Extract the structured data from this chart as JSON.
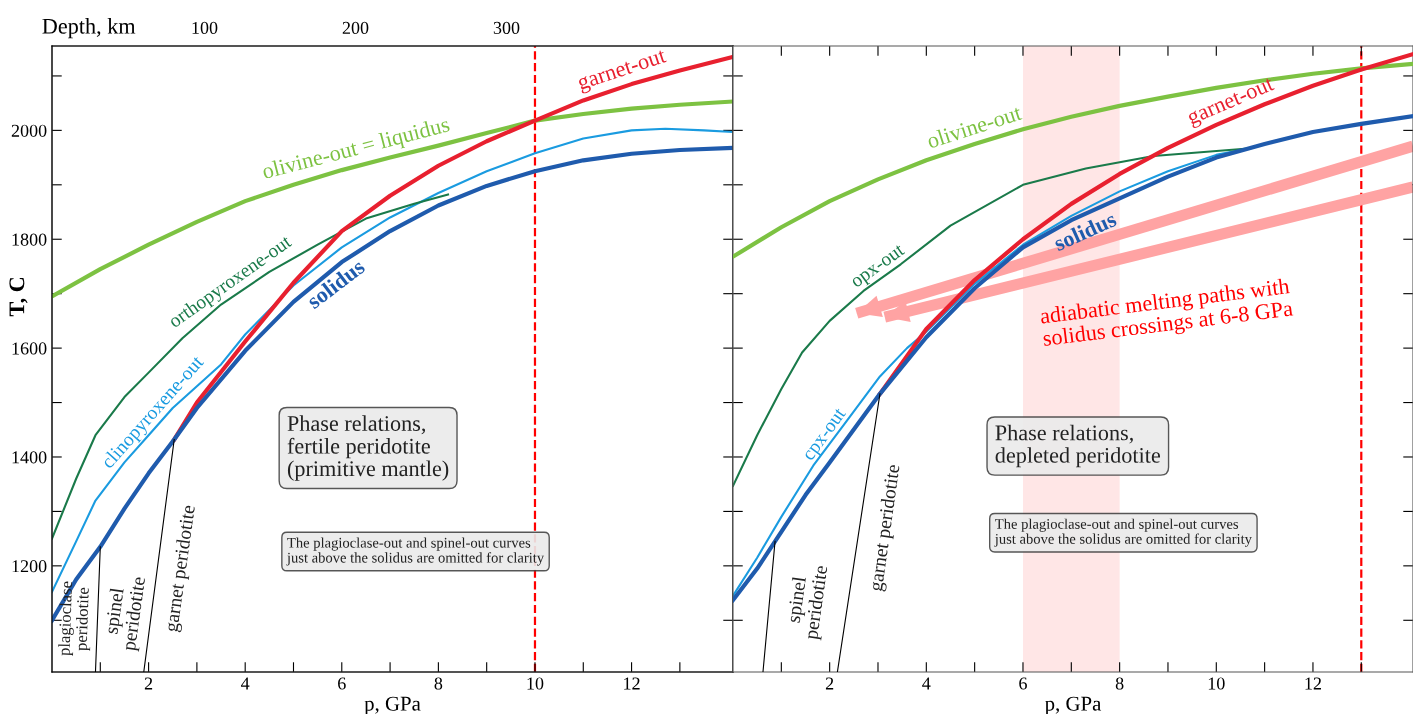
{
  "chart_data": [
    {
      "type": "line",
      "xlabel": "p, GPa",
      "ylabel": "T, C",
      "x2label": "Depth, km",
      "xlim": [
        0,
        14.1
      ],
      "ylim": [
        1005,
        2155
      ],
      "x2lim": [
        -1,
        450
      ],
      "xticks": [
        {
          "value": 1,
          "label": null
        },
        2,
        {
          "value": 3,
          "label": null
        },
        4,
        {
          "value": 5,
          "label": null
        },
        6,
        {
          "value": 7,
          "label": null
        },
        8,
        {
          "value": 9,
          "label": null
        },
        10,
        {
          "value": 11,
          "label": null
        },
        12,
        {
          "value": 13,
          "label": null
        }
      ],
      "yticks": [
        {
          "value": 1100,
          "label": null
        },
        1200,
        {
          "value": 1300,
          "label": null
        },
        1400,
        {
          "value": 1500,
          "label": null
        },
        1600,
        {
          "value": 1700,
          "label": null
        },
        1800,
        {
          "value": 1900,
          "label": null
        },
        2000,
        {
          "value": 2100,
          "label": null
        }
      ],
      "x2ticks": [
        100,
        200,
        300
      ],
      "grid": false,
      "series": [
        {
          "name": "olivine-out = liquidus",
          "color": "#7dc242",
          "x": [
            0,
            1,
            2,
            3,
            4,
            5,
            6,
            7,
            8,
            9,
            10,
            11,
            12,
            13,
            14.1
          ],
          "values": [
            1695,
            1745,
            1790,
            1832,
            1870,
            1900,
            1927,
            1950,
            1972,
            1995,
            2018,
            2030,
            2040,
            2047,
            2053
          ]
        },
        {
          "name": "garnet-out",
          "color": "#e8202f",
          "x": [
            2.53,
            3,
            4,
            5,
            6,
            7,
            8,
            9,
            10,
            11,
            12,
            13,
            14.1
          ],
          "values": [
            1432,
            1500,
            1612,
            1720,
            1815,
            1880,
            1935,
            1980,
            2018,
            2055,
            2085,
            2110,
            2135
          ]
        },
        {
          "name": "solidus",
          "color": "#1f5bad",
          "x": [
            0,
            0.5,
            1,
            1.5,
            2,
            2.53,
            3,
            4,
            5,
            6,
            7,
            8,
            9,
            10,
            11,
            12,
            13,
            14.1
          ],
          "values": [
            1100,
            1175,
            1235,
            1305,
            1370,
            1432,
            1490,
            1595,
            1685,
            1758,
            1815,
            1862,
            1898,
            1925,
            1945,
            1957,
            1964,
            1968
          ]
        },
        {
          "name": "clinopyroxene-out",
          "color": "#1a9be0",
          "x": [
            0,
            0.5,
            0.9,
            1.5,
            2,
            2.5,
            3,
            3.5,
            4,
            5,
            6,
            7,
            8,
            9,
            10,
            11,
            12,
            12.7,
            13.5,
            14.1
          ],
          "values": [
            1152,
            1245,
            1320,
            1390,
            1440,
            1490,
            1530,
            1570,
            1625,
            1715,
            1785,
            1840,
            1885,
            1925,
            1958,
            1985,
            2000,
            2003,
            2000,
            1997
          ]
        },
        {
          "name": "orthopyroxene-out",
          "color": "#1a7a4a",
          "x": [
            0,
            0.5,
            0.9,
            1.5,
            2,
            2.7,
            3.5,
            4.5,
            5.5,
            6.5,
            7.5,
            8.2
          ],
          "values": [
            1250,
            1360,
            1440,
            1510,
            1555,
            1618,
            1680,
            1740,
            1790,
            1838,
            1865,
            1882
          ]
        },
        {
          "color": "#000000",
          "x": [
            1.0,
            0.9
          ],
          "values": [
            1235,
            1005
          ]
        },
        {
          "color": "#000000",
          "x": [
            2.53,
            1.9
          ],
          "values": [
            1432,
            1005
          ]
        }
      ],
      "ref_lines": [
        {
          "axis": "x",
          "value": 10,
          "color": "#ff0000",
          "line_style": "dashed"
        }
      ],
      "annotations": [
        "Phase relations,\nfertile peridotite\n(primitive mantle)",
        "The plagioclase-out and spinel-out curves\njust above the solidus are omitted for clarity",
        "plagioclase\nperidotite",
        "spinel\nperidotite",
        "garnet peridotite"
      ]
    },
    {
      "type": "line",
      "xlabel": "p, GPa",
      "xlim": [
        0,
        14.07
      ],
      "ylim": [
        1005,
        2155
      ],
      "tick_labels": "x",
      "xticks": [
        {
          "value": 1,
          "label": null
        },
        2,
        {
          "value": 3,
          "label": null
        },
        4,
        {
          "value": 5,
          "label": null
        },
        6,
        {
          "value": 7,
          "label": null
        },
        8,
        {
          "value": 9,
          "label": null
        },
        10,
        {
          "value": 11,
          "label": null
        },
        12,
        {
          "value": 13,
          "label": null
        }
      ],
      "yticks": [
        {
          "value": 1100,
          "label": null
        },
        {
          "value": 1200,
          "label": null
        },
        {
          "value": 1300,
          "label": null
        },
        {
          "value": 1400,
          "label": null
        },
        {
          "value": 1500,
          "label": null
        },
        {
          "value": 1600,
          "label": null
        },
        {
          "value": 1700,
          "label": null
        },
        {
          "value": 1800,
          "label": null
        },
        {
          "value": 1900,
          "label": null
        },
        {
          "value": 2000,
          "label": null
        },
        {
          "value": 2100,
          "label": null
        }
      ],
      "grid": false,
      "series": [
        {
          "name": "olivine-out",
          "color": "#7dc242",
          "x": [
            0,
            1,
            2,
            3,
            4,
            5,
            6,
            7,
            8,
            9,
            10,
            11,
            12,
            13,
            14.07
          ],
          "values": [
            1768,
            1822,
            1870,
            1910,
            1945,
            1975,
            2002,
            2025,
            2045,
            2062,
            2078,
            2092,
            2104,
            2114,
            2122
          ]
        },
        {
          "name": "garnet-out",
          "color": "#e8202f",
          "x": [
            3.04,
            4,
            5,
            6,
            7,
            8,
            9,
            10,
            11,
            12,
            13,
            14.07
          ],
          "values": [
            1516,
            1635,
            1725,
            1800,
            1865,
            1920,
            1968,
            2010,
            2048,
            2082,
            2112,
            2140
          ]
        },
        {
          "name": "solidus",
          "color": "#1f5bad",
          "x": [
            0,
            0.5,
            0.87,
            1.5,
            2,
            3.04,
            4,
            5,
            6,
            7,
            8,
            9,
            10,
            11,
            12,
            13,
            14.07
          ],
          "values": [
            1137,
            1195,
            1245,
            1330,
            1390,
            1516,
            1620,
            1710,
            1785,
            1835,
            1875,
            1915,
            1950,
            1975,
            1997,
            2012,
            2026
          ]
        },
        {
          "name": "cpx-out",
          "color": "#1a9be0",
          "x": [
            0,
            0.5,
            1,
            1.66,
            2.3,
            3.04,
            3.6,
            4,
            5,
            6,
            7,
            8,
            9,
            10,
            10.7
          ],
          "values": [
            1145,
            1215,
            1290,
            1384,
            1460,
            1548,
            1600,
            1630,
            1718,
            1790,
            1843,
            1888,
            1925,
            1955,
            1967
          ]
        },
        {
          "name": "opx-out",
          "color": "#1a7a4a",
          "x": [
            0,
            0.5,
            1,
            1.43,
            2,
            2.7,
            3.47,
            4.5,
            6,
            7.3,
            8.7,
            10.7
          ],
          "values": [
            1347,
            1440,
            1525,
            1592,
            1650,
            1705,
            1754,
            1825,
            1900,
            1930,
            1953,
            1967
          ]
        },
        {
          "color": "#000000",
          "x": [
            0.87,
            0.62
          ],
          "values": [
            1245,
            1005
          ]
        },
        {
          "color": "#000000",
          "x": [
            3.04,
            2.16
          ],
          "values": [
            1516,
            1005
          ]
        },
        {
          "color": "#ffa3a3",
          "x": [
            14.07,
            2.56
          ],
          "values": [
            1971,
            1664
          ]
        },
        {
          "color": "#ffa3a3",
          "x": [
            14.07,
            3.14
          ],
          "values": [
            1896,
            1657
          ]
        }
      ],
      "ref_lines": [
        {
          "axis": "x",
          "value": 13,
          "color": "#ff0000",
          "line_style": "dashed"
        }
      ],
      "bands": [
        {
          "axis": "x",
          "from": 6,
          "to": 8,
          "color": "#ffe6e6"
        }
      ],
      "annotations": [
        "Phase relations,\ndepleted peridotite",
        "The plagioclase-out and spinel-out curves\njust above the solidus are omitted for clarity",
        "adiabatic melting paths with\nsolidus crossings at 6-8 GPa",
        "spinel\nperidotite",
        "garnet peridotite"
      ]
    }
  ]
}
